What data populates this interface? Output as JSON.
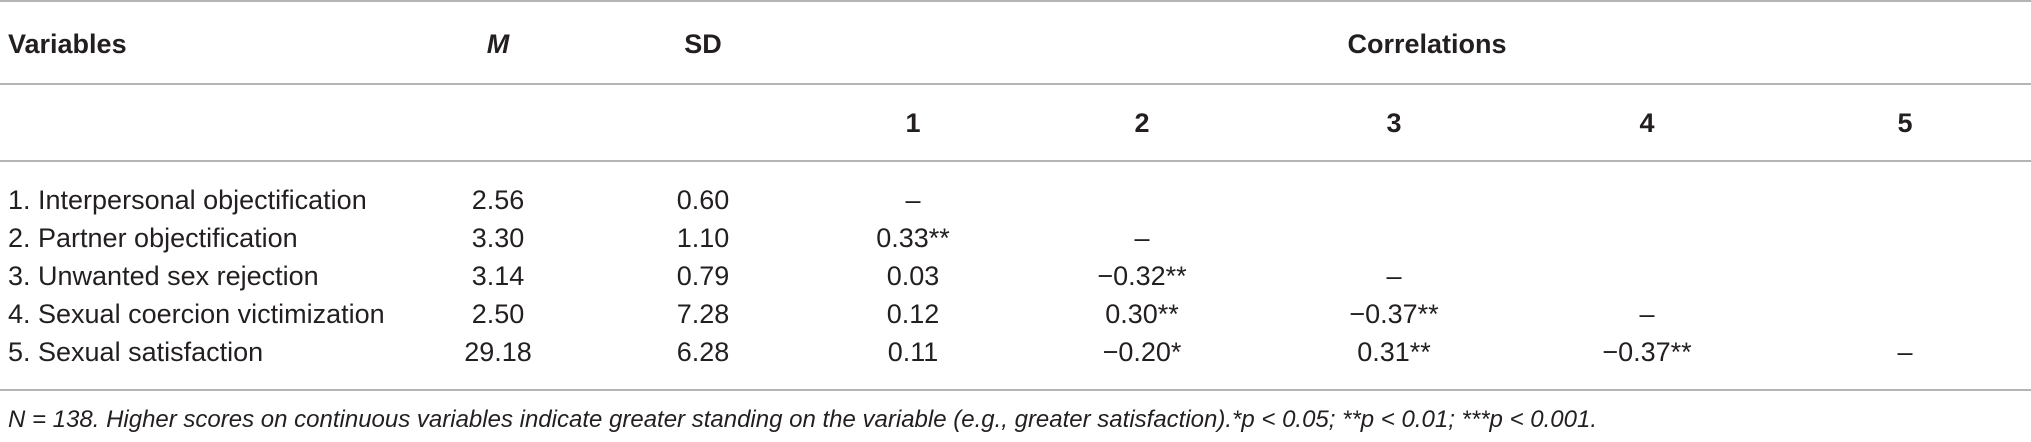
{
  "header": {
    "variables": "Variables",
    "mean": "M",
    "sd": "SD",
    "correlations": "Correlations",
    "corr_cols": [
      "1",
      "2",
      "3",
      "4",
      "5"
    ]
  },
  "rows": [
    {
      "label": "1. Interpersonal objectification",
      "m": "2.56",
      "sd": "0.60",
      "c": [
        "–",
        "",
        "",
        "",
        ""
      ]
    },
    {
      "label": "2. Partner objectification",
      "m": "3.30",
      "sd": "1.10",
      "c": [
        "0.33**",
        "–",
        "",
        "",
        ""
      ]
    },
    {
      "label": "3. Unwanted sex rejection",
      "m": "3.14",
      "sd": "0.79",
      "c": [
        "0.03",
        "−0.32**",
        "–",
        "",
        ""
      ]
    },
    {
      "label": "4. Sexual coercion victimization",
      "m": "2.50",
      "sd": "7.28",
      "c": [
        "0.12",
        "0.30**",
        "−0.37**",
        "–",
        ""
      ]
    },
    {
      "label": "5. Sexual satisfaction",
      "m": "29.18",
      "sd": "6.28",
      "c": [
        "0.11",
        "−0.20*",
        "0.31**",
        "−0.37**",
        "–"
      ]
    }
  ],
  "footnote": "N = 138. Higher scores on continuous variables indicate greater standing on the variable (e.g., greater satisfaction).*p < 0.05; **p < 0.01; ***p < 0.001."
}
